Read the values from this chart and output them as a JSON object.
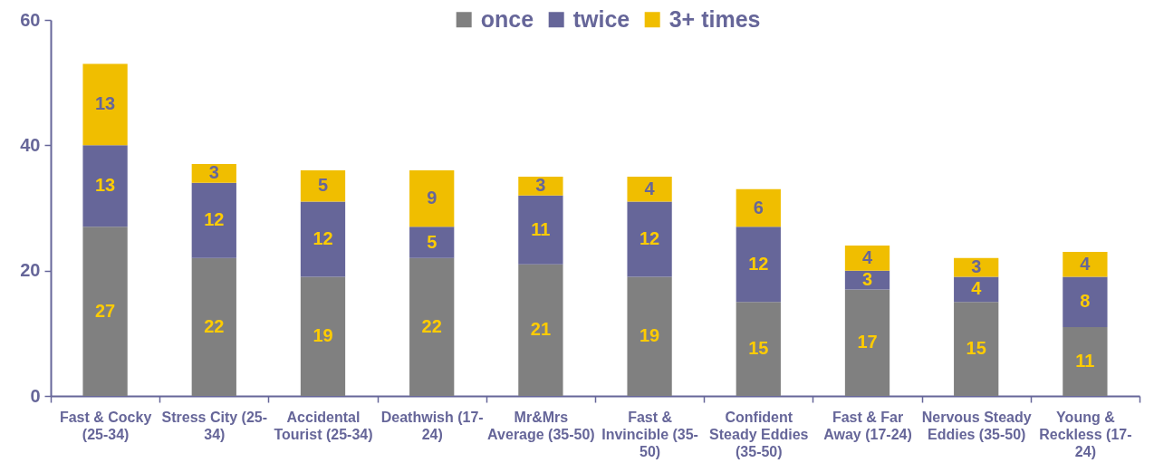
{
  "chart_data": {
    "type": "bar",
    "stacked": true,
    "data_labels": true,
    "legend": "top",
    "categories": [
      "Fast & Cocky (25-34)",
      "Stress City (25-34)",
      "Accidental Tourist (25-34)",
      "Deathwish (17-24)",
      "Mr&Mrs Average (35-50)",
      "Fast & Invincible (35-50)",
      "Confident Steady Eddies (35-50)",
      "Fast & Far Away (17-24)",
      "Nervous Steady Eddies (35-50)",
      "Young & Reckless (17-24)"
    ],
    "series": [
      {
        "name": "once",
        "color": "#808080",
        "values": [
          27,
          22,
          19,
          22,
          21,
          19,
          15,
          17,
          15,
          11
        ]
      },
      {
        "name": "twice",
        "color": "#666699",
        "values": [
          13,
          12,
          12,
          5,
          11,
          12,
          12,
          3,
          4,
          8
        ]
      },
      {
        "name": "3+ times",
        "color": "#f0be00",
        "values": [
          13,
          3,
          5,
          9,
          3,
          4,
          6,
          4,
          3,
          4
        ]
      }
    ],
    "ylim": [
      0,
      60
    ],
    "yticks": [
      0,
      20,
      40,
      60
    ]
  }
}
